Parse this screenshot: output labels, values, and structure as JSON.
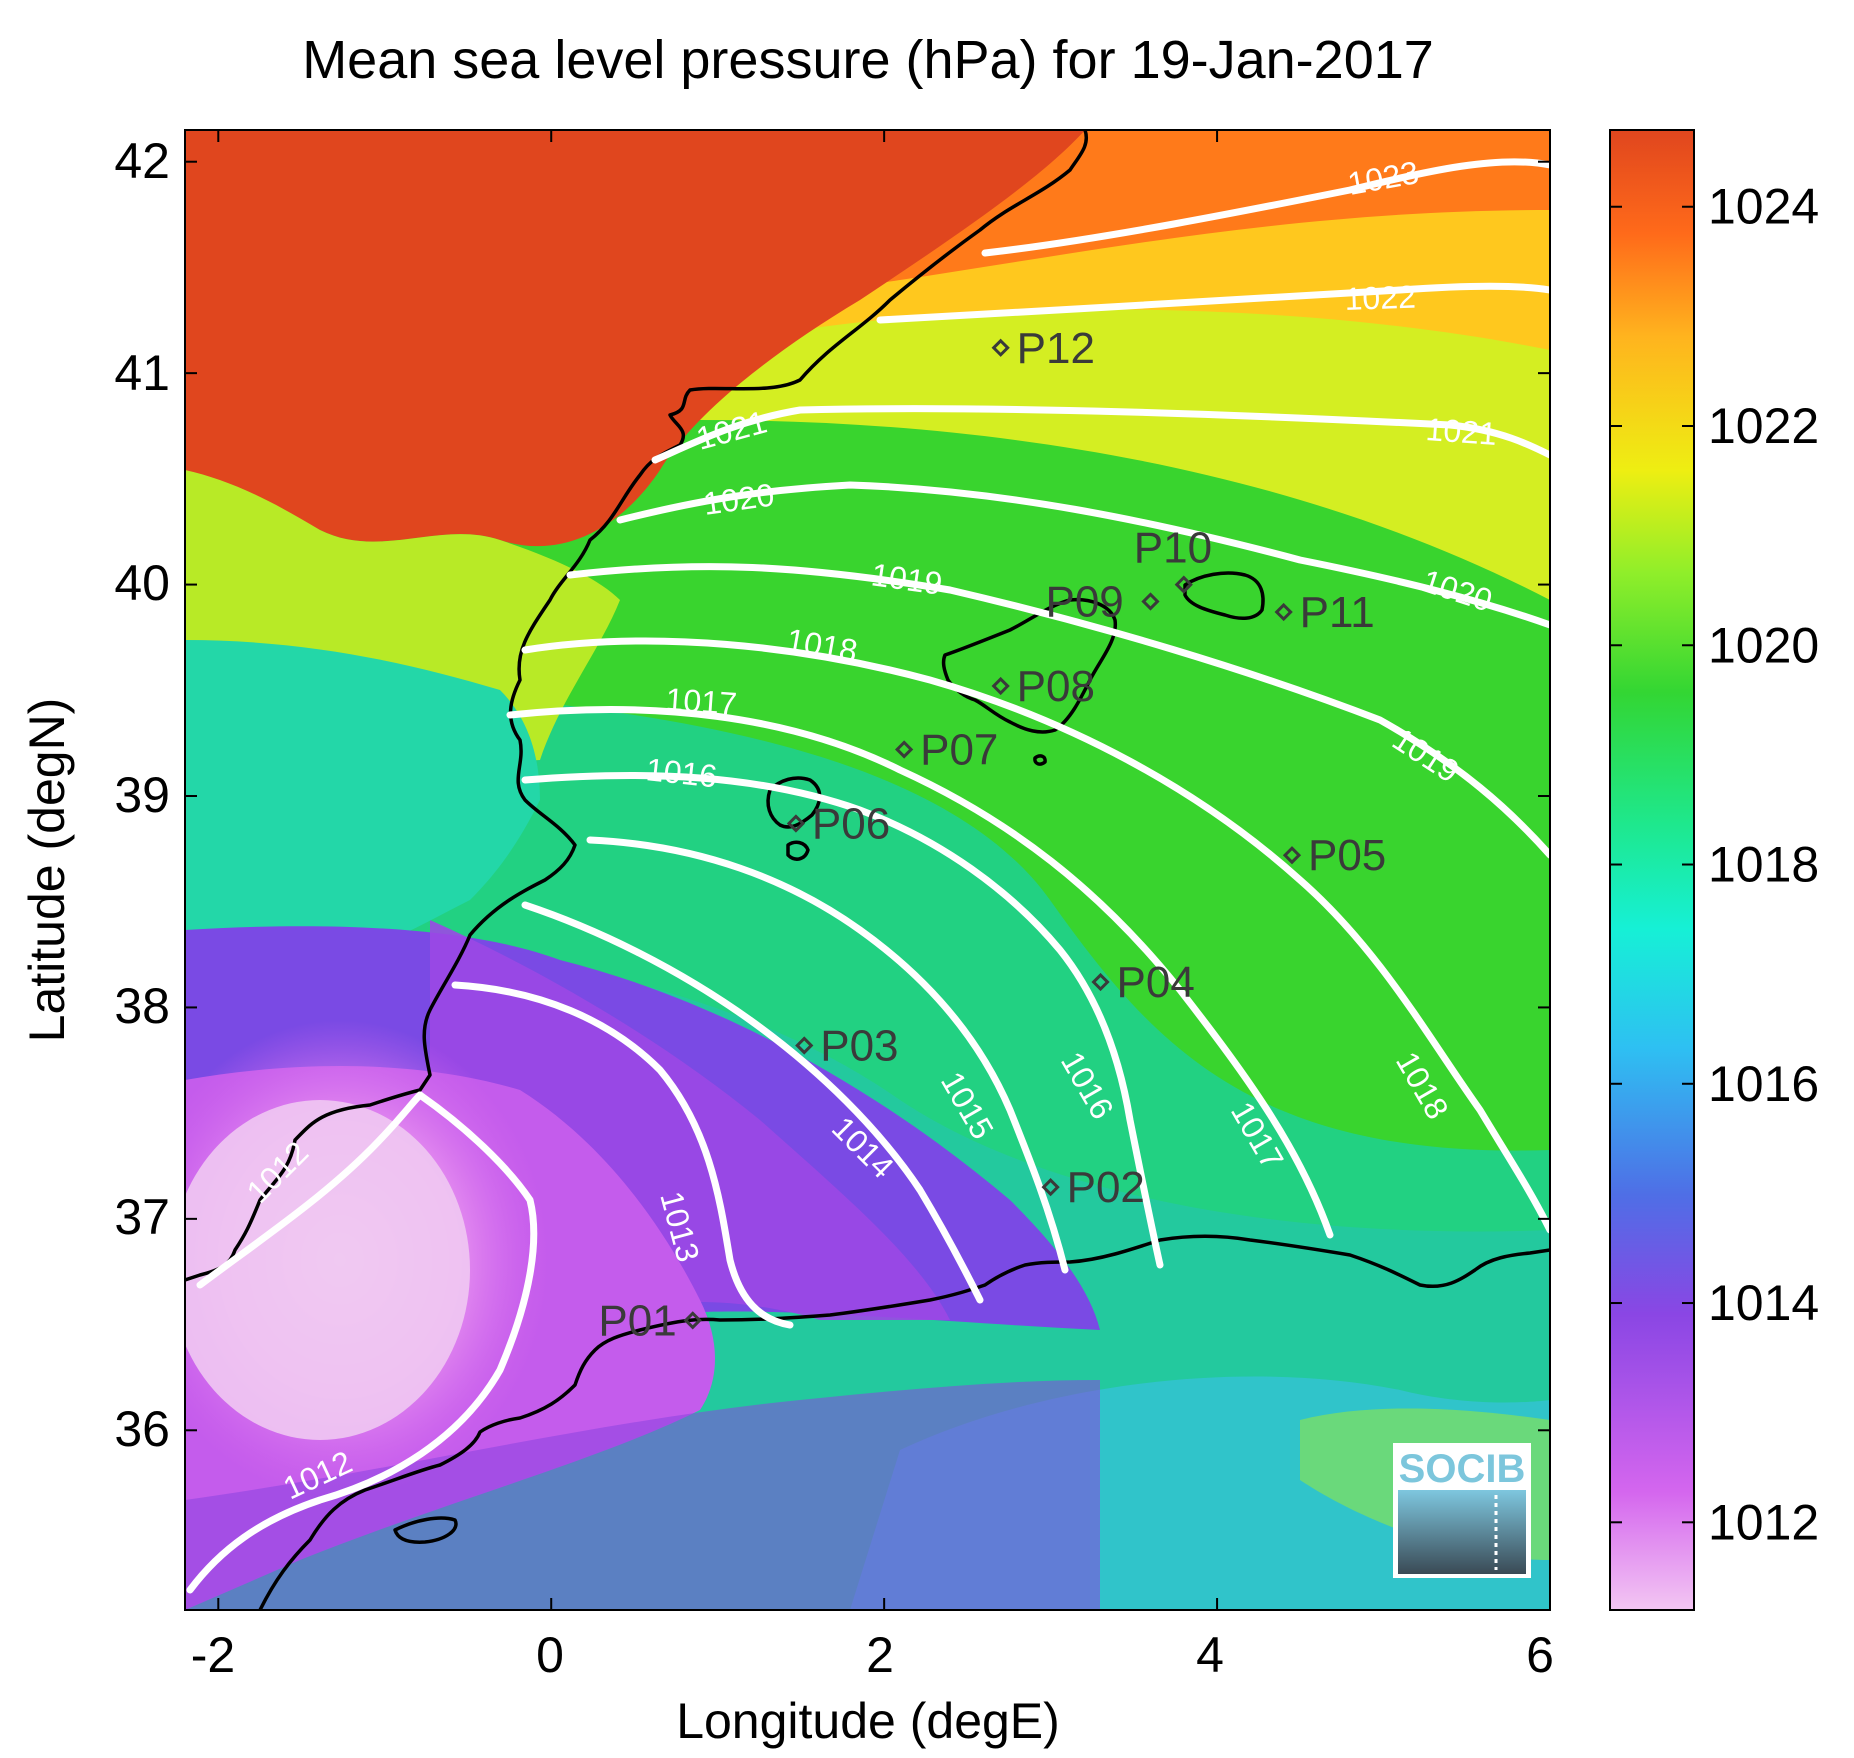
{
  "title": "Mean sea level pressure (hPa) for 19-Jan-2017",
  "x_axis": {
    "label": "Longitude (degE)",
    "ticks": [
      "-2",
      "0",
      "2",
      "4",
      "6"
    ],
    "range": [
      -2.2,
      6.0
    ]
  },
  "y_axis": {
    "label": "Latitude (degN)",
    "ticks": [
      "36",
      "37",
      "38",
      "39",
      "40",
      "41",
      "42"
    ],
    "range": [
      35.15,
      42.15
    ]
  },
  "colorbar": {
    "ticks": [
      "1012",
      "1014",
      "1016",
      "1018",
      "1020",
      "1022",
      "1024"
    ],
    "range": [
      1011.2,
      1024.7
    ],
    "colormap": [
      "#f3c6f3",
      "#d466ee",
      "#8a46e4",
      "#4f6ee6",
      "#2ec0f2",
      "#16f0d6",
      "#1ee88e",
      "#33d633",
      "#8fee2a",
      "#eeee12",
      "#ffb41e",
      "#ff6a1a",
      "#e0461e"
    ]
  },
  "contour_labels": [
    {
      "text": "1012",
      "key": "1012a"
    },
    {
      "text": "1012",
      "key": "1012b"
    },
    {
      "text": "1013",
      "key": "1013"
    },
    {
      "text": "1014",
      "key": "1014"
    },
    {
      "text": "1015",
      "key": "1015"
    },
    {
      "text": "1016",
      "key": "1016a"
    },
    {
      "text": "1016",
      "key": "1016b"
    },
    {
      "text": "1017",
      "key": "1017a"
    },
    {
      "text": "1017",
      "key": "1017b"
    },
    {
      "text": "1018",
      "key": "1018a"
    },
    {
      "text": "1018",
      "key": "1018b"
    },
    {
      "text": "1019",
      "key": "1019a"
    },
    {
      "text": "1019",
      "key": "1019b"
    },
    {
      "text": "1020",
      "key": "1020a"
    },
    {
      "text": "1020",
      "key": "1020b"
    },
    {
      "text": "1021",
      "key": "1021a"
    },
    {
      "text": "1021",
      "key": "1021b"
    },
    {
      "text": "1022",
      "key": "1022"
    },
    {
      "text": "1023",
      "key": "1023"
    }
  ],
  "stations": [
    {
      "name": "P01",
      "lon": 0.85,
      "lat": 36.52
    },
    {
      "name": "P02",
      "lon": 3.0,
      "lat": 37.15
    },
    {
      "name": "P03",
      "lon": 1.52,
      "lat": 37.82
    },
    {
      "name": "P04",
      "lon": 3.3,
      "lat": 38.12
    },
    {
      "name": "P05",
      "lon": 4.45,
      "lat": 38.72
    },
    {
      "name": "P06",
      "lon": 1.47,
      "lat": 38.87
    },
    {
      "name": "P07",
      "lon": 2.12,
      "lat": 39.22
    },
    {
      "name": "P08",
      "lon": 2.7,
      "lat": 39.52
    },
    {
      "name": "P09",
      "lon": 3.6,
      "lat": 39.92
    },
    {
      "name": "P10",
      "lon": 3.8,
      "lat": 40.0
    },
    {
      "name": "P11",
      "lon": 4.4,
      "lat": 39.87
    },
    {
      "name": "P12",
      "lon": 2.7,
      "lat": 41.12
    }
  ],
  "logo": {
    "text": "SOCIB"
  }
}
